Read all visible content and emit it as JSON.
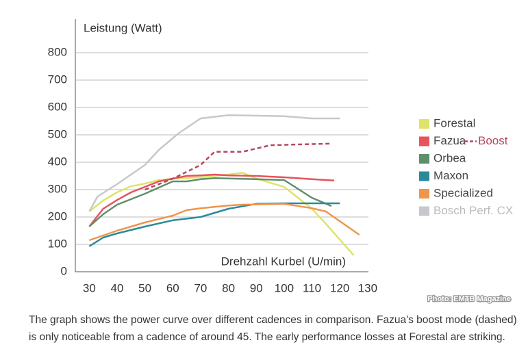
{
  "chart_data": {
    "type": "line",
    "y_label": "Leistung (Watt)",
    "x_label": "Drehzahl Kurbel (U/min)",
    "credit": "Photo: EMTB Magazine",
    "xlim": [
      25,
      132
    ],
    "xticks": [
      30,
      40,
      50,
      60,
      70,
      80,
      90,
      100,
      110,
      120,
      130
    ],
    "ylim": [
      0,
      800
    ],
    "yticks": [
      0,
      100,
      200,
      300,
      400,
      500,
      600,
      700,
      800
    ],
    "grid": true,
    "series": [
      {
        "name": "Forestal",
        "color": "#dde46a",
        "x": [
          30,
          35,
          40,
          45,
          50,
          55,
          60,
          70,
          80,
          85,
          90,
          100,
          110,
          115,
          125
        ],
        "values": [
          220,
          260,
          290,
          312,
          322,
          335,
          340,
          345,
          355,
          362,
          340,
          310,
          230,
          175,
          60
        ]
      },
      {
        "name": "Fazua",
        "color": "#e8525a",
        "x": [
          30,
          35,
          40,
          45,
          50,
          55,
          60,
          65,
          70,
          75,
          80,
          90,
          100,
          110,
          118
        ],
        "values": [
          165,
          230,
          262,
          290,
          310,
          330,
          340,
          350,
          352,
          355,
          352,
          350,
          345,
          338,
          333
        ]
      },
      {
        "name": "Boost",
        "color": "#b5475f",
        "line_style": "dashed",
        "x": [
          50,
          60,
          70,
          75,
          85,
          95,
          105,
          117
        ],
        "values": [
          300,
          340,
          390,
          438,
          438,
          462,
          465,
          468
        ]
      },
      {
        "name": "Orbea",
        "color": "#5e8f6a",
        "x": [
          30,
          35,
          40,
          50,
          60,
          65,
          70,
          75,
          90,
          100,
          110,
          117
        ],
        "values": [
          165,
          210,
          245,
          285,
          330,
          330,
          338,
          342,
          338,
          335,
          270,
          240
        ]
      },
      {
        "name": "Maxon",
        "color": "#2a8a9c",
        "x": [
          30,
          35,
          40,
          50,
          60,
          70,
          80,
          90,
          100,
          120
        ],
        "values": [
          93,
          125,
          140,
          165,
          188,
          200,
          230,
          248,
          250,
          250
        ]
      },
      {
        "name": "Specialized",
        "color": "#f0954a",
        "x": [
          30,
          40,
          50,
          60,
          65,
          70,
          80,
          85,
          100,
          110,
          115,
          127
        ],
        "values": [
          115,
          150,
          180,
          205,
          225,
          232,
          242,
          245,
          248,
          232,
          220,
          135
        ]
      },
      {
        "name": "Bosch Perf. CX",
        "color": "#c6c8cc",
        "x": [
          30,
          33,
          40,
          50,
          55,
          62,
          70,
          80,
          100,
          110,
          120
        ],
        "values": [
          220,
          275,
          320,
          390,
          445,
          505,
          560,
          572,
          568,
          560,
          560
        ]
      }
    ]
  },
  "caption": "The graph shows the power curve over different cadences in comparison. Fazua's boost mode (dashed) is only noticeable from a cadence of around 45. The early performance losses at Forestal are striking."
}
